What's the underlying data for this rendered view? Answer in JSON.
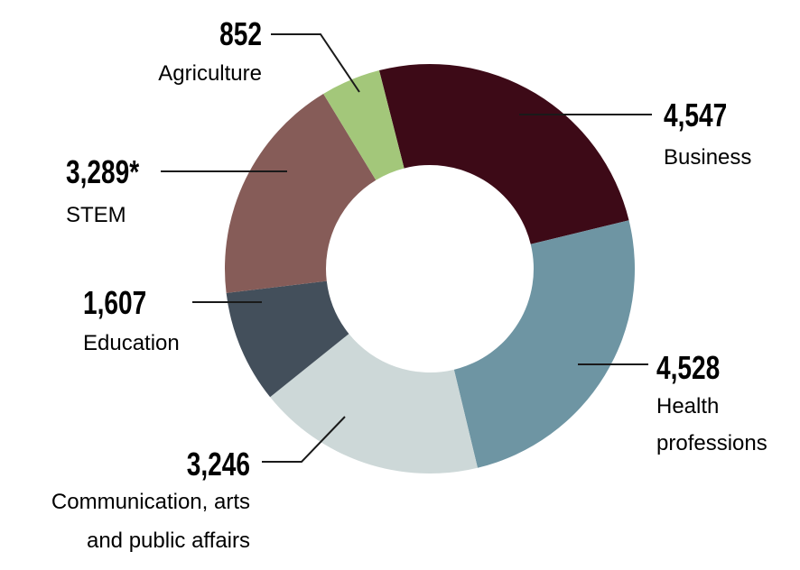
{
  "chart_data": {
    "type": "pie",
    "variant": "donut",
    "categories": [
      "Business",
      "Health professions",
      "Communication, arts and public affairs",
      "Education",
      "STEM",
      "Agriculture"
    ],
    "values": [
      4547,
      4528,
      3246,
      1607,
      3289,
      852
    ],
    "value_labels": [
      "4,547",
      "4,528",
      "3,246",
      "1,607",
      "3,289*",
      "852"
    ],
    "label_lines": [
      [
        "Business"
      ],
      [
        "Health",
        "professions"
      ],
      [
        "Communication, arts",
        "and public affairs"
      ],
      [
        "Education"
      ],
      [
        "STEM"
      ],
      [
        "Agriculture"
      ]
    ],
    "colors": [
      "#3d0a17",
      "#6e95a3",
      "#cdd8d8",
      "#434f5b",
      "#865c58",
      "#a3c77a"
    ],
    "legend": "none"
  }
}
